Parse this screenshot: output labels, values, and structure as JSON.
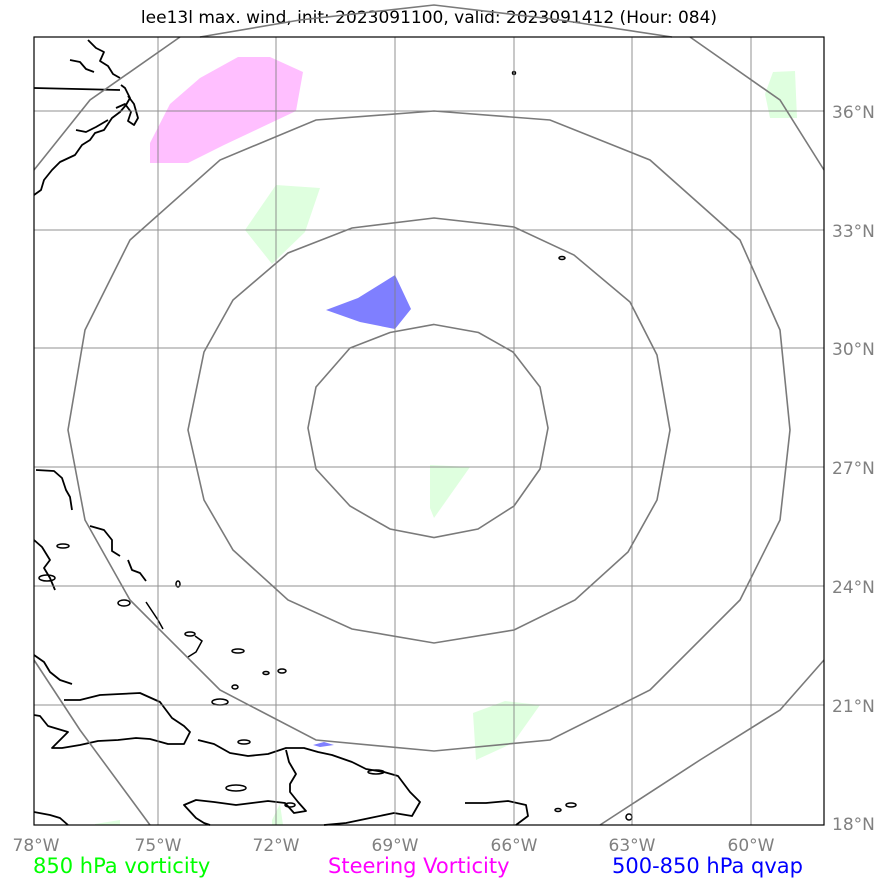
{
  "title": "lee13l max. wind, init: 2023091100, valid: 2023091412 (Hour: 084)",
  "axes": {
    "x_labels": [
      "78°W",
      "75°W",
      "72°W",
      "69°W",
      "66°W",
      "63°W",
      "60°W"
    ],
    "y_labels": [
      "36°N",
      "33°N",
      "30°N",
      "27°N",
      "24°N",
      "21°N",
      "18°N"
    ]
  },
  "legend": {
    "vort850": "850 hPa vorticity",
    "steering": "Steering Vorticity",
    "qvap": "500-850 hPa qvap"
  },
  "colors": {
    "vort850": "#00ff00",
    "steering": "#ff00ff",
    "qvap": "#0000ff",
    "vort850_fill": "#dfffdf",
    "steering_fill": "#ffbfff",
    "qvap_fill": "#7f7fff",
    "grid": "#808080"
  }
}
